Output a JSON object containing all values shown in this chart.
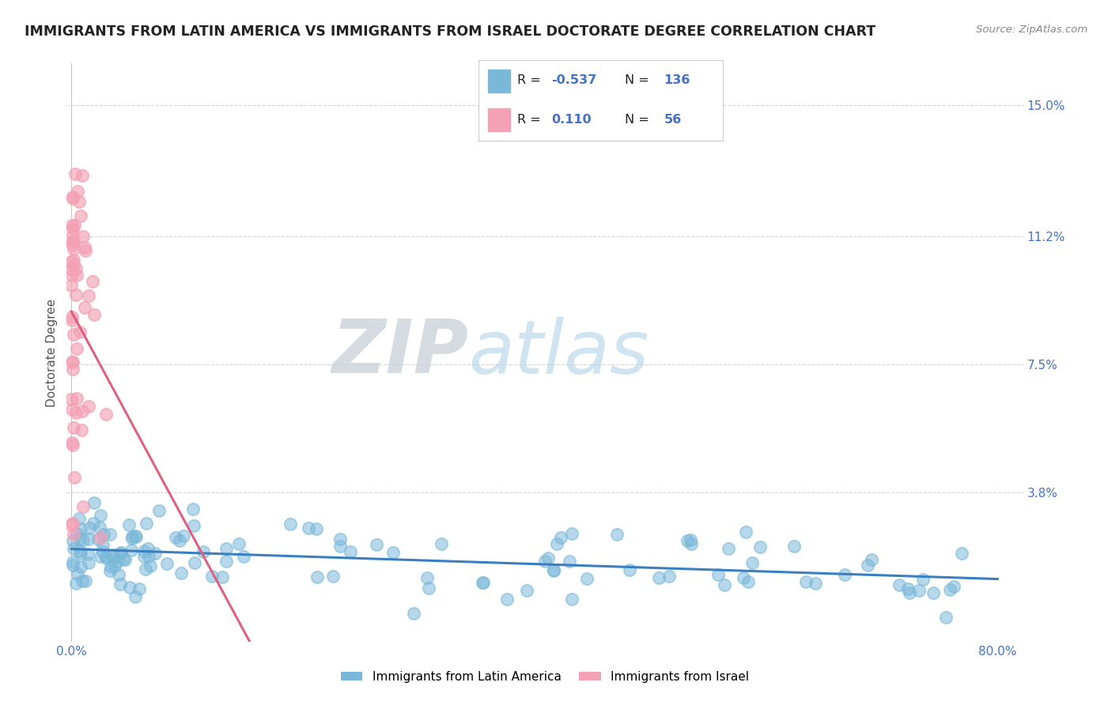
{
  "title": "IMMIGRANTS FROM LATIN AMERICA VS IMMIGRANTS FROM ISRAEL DOCTORATE DEGREE CORRELATION CHART",
  "source_text": "Source: ZipAtlas.com",
  "ylabel": "Doctorate Degree",
  "y_tick_vals": [
    0.038,
    0.075,
    0.112,
    0.15
  ],
  "y_tick_labels": [
    "3.8%",
    "7.5%",
    "11.2%",
    "15.0%"
  ],
  "xlim": [
    -0.004,
    0.822
  ],
  "ylim": [
    -0.005,
    0.162
  ],
  "blue_color": "#7ab8d9",
  "pink_color": "#f4a0b5",
  "blue_line_color": "#3a7fc1",
  "pink_line_color": "#e06080",
  "blue_R": -0.537,
  "blue_N": 136,
  "pink_R": 0.11,
  "pink_N": 56,
  "legend_label_blue": "Immigrants from Latin America",
  "legend_label_pink": "Immigrants from Israel",
  "watermark_zip": "ZIP",
  "watermark_atlas": "atlas",
  "background_color": "#ffffff",
  "grid_color": "#c8d8e8",
  "title_color": "#222222",
  "axis_label_color": "#4472c4",
  "source_color": "#888888"
}
